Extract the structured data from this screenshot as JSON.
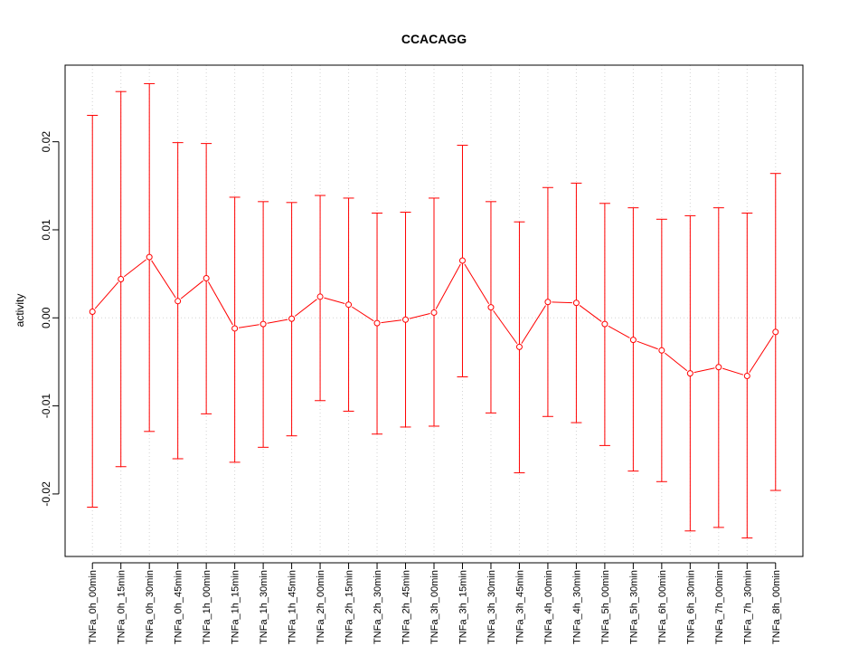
{
  "chart_data": {
    "type": "line",
    "title": "CCACAGG",
    "xlabel": "",
    "ylabel": "activity",
    "ylim": [
      -0.0271,
      0.0287
    ],
    "xlim": [
      0.04,
      25.96
    ],
    "grid": true,
    "y_ticks": [
      -0.02,
      -0.01,
      0.0,
      0.01,
      0.02
    ],
    "y_tick_labels": [
      "-0.02",
      "-0.01",
      "0.00",
      "0.01",
      "0.02"
    ],
    "color": "#ff0000",
    "categories": [
      "TNFa_0h_00min",
      "TNFa_0h_15min",
      "TNFa_0h_30min",
      "TNFa_0h_45min",
      "TNFa_1h_00min",
      "TNFa_1h_15min",
      "TNFa_1h_30min",
      "TNFa_1h_45min",
      "TNFa_2h_00min",
      "TNFa_2h_15min",
      "TNFa_2h_30min",
      "TNFa_2h_45min",
      "TNFa_3h_00min",
      "TNFa_3h_15min",
      "TNFa_3h_30min",
      "TNFa_3h_45min",
      "TNFa_4h_00min",
      "TNFa_4h_30min",
      "TNFa_5h_00min",
      "TNFa_5h_30min",
      "TNFa_6h_00min",
      "TNFa_6h_30min",
      "TNFa_7h_00min",
      "TNFa_7h_30min",
      "TNFa_8h_00min"
    ],
    "values": [
      0.0007,
      0.0044,
      0.0069,
      0.0019,
      0.0045,
      -0.0012,
      -0.0007,
      -0.0001,
      0.0024,
      0.0015,
      -0.0006,
      -0.0002,
      0.0006,
      0.0065,
      0.0012,
      -0.0033,
      0.0018,
      0.0017,
      -0.0007,
      -0.0025,
      -0.0037,
      -0.0063,
      -0.0056,
      -0.0066,
      -0.0016
    ],
    "upper": [
      0.023,
      0.0257,
      0.0266,
      0.0199,
      0.0198,
      0.0137,
      0.0132,
      0.0131,
      0.0139,
      0.0136,
      0.0119,
      0.012,
      0.0136,
      0.0196,
      0.0132,
      0.0109,
      0.0148,
      0.0153,
      0.013,
      0.0125,
      0.0112,
      0.0116,
      0.0125,
      0.0119,
      0.0164
    ],
    "lower": [
      -0.0215,
      -0.0169,
      -0.0129,
      -0.016,
      -0.0109,
      -0.0164,
      -0.0147,
      -0.0134,
      -0.0094,
      -0.0106,
      -0.0132,
      -0.0124,
      -0.0123,
      -0.0067,
      -0.0108,
      -0.0176,
      -0.0112,
      -0.0119,
      -0.0145,
      -0.0174,
      -0.0186,
      -0.0242,
      -0.0238,
      -0.025,
      -0.0196
    ]
  }
}
